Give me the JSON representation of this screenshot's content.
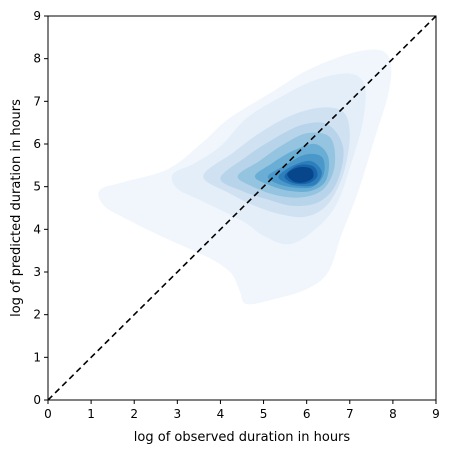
{
  "chart_data": {
    "type": "kde-contour",
    "xlabel": "log of observed duration in hours",
    "ylabel": "log of predicted duration in hours",
    "xlim": [
      0,
      9
    ],
    "ylim": [
      0,
      9
    ],
    "xticks": [
      "0",
      "1",
      "2",
      "3",
      "4",
      "5",
      "6",
      "7",
      "8",
      "9"
    ],
    "yticks": [
      "0",
      "1",
      "2",
      "3",
      "4",
      "5",
      "6",
      "7",
      "8",
      "9"
    ],
    "grid": false,
    "legend": "none",
    "reference_line": {
      "style": "dashed",
      "color": "#000000",
      "from": [
        0,
        0
      ],
      "to": [
        9,
        9
      ]
    },
    "density_peak": {
      "x": 5.85,
      "y": 5.3
    },
    "contour_levels": [
      {
        "level": 1,
        "color": "#f1f6fd",
        "points": [
          [
            1.2,
            4.92
          ],
          [
            1.8,
            5.12
          ],
          [
            2.8,
            5.42
          ],
          [
            3.6,
            6.05
          ],
          [
            4.2,
            6.6
          ],
          [
            5.2,
            7.22
          ],
          [
            6.0,
            7.72
          ],
          [
            7.0,
            8.12
          ],
          [
            7.7,
            8.2
          ],
          [
            7.95,
            7.9
          ],
          [
            7.9,
            7.2
          ],
          [
            7.6,
            6.2
          ],
          [
            7.2,
            4.9
          ],
          [
            6.8,
            3.85
          ],
          [
            6.5,
            3.0
          ],
          [
            6.0,
            2.6
          ],
          [
            5.2,
            2.35
          ],
          [
            4.6,
            2.25
          ],
          [
            4.45,
            2.55
          ],
          [
            4.3,
            2.9
          ],
          [
            4.1,
            3.1
          ],
          [
            3.7,
            3.35
          ],
          [
            2.6,
            3.85
          ],
          [
            1.8,
            4.25
          ],
          [
            1.3,
            4.55
          ]
        ]
      },
      {
        "level": 2,
        "color": "#e3eef9",
        "points": [
          [
            2.9,
            5.3
          ],
          [
            3.4,
            5.55
          ],
          [
            4.0,
            5.95
          ],
          [
            4.6,
            6.6
          ],
          [
            5.3,
            7.05
          ],
          [
            6.2,
            7.5
          ],
          [
            7.0,
            7.65
          ],
          [
            7.35,
            7.35
          ],
          [
            7.3,
            6.5
          ],
          [
            7.05,
            5.6
          ],
          [
            6.7,
            4.6
          ],
          [
            6.2,
            4.0
          ],
          [
            5.6,
            3.65
          ],
          [
            5.0,
            3.85
          ],
          [
            4.5,
            4.2
          ],
          [
            3.6,
            4.65
          ],
          [
            3.0,
            4.95
          ]
        ]
      },
      {
        "level": 3,
        "color": "#d0e1f2",
        "points": [
          [
            3.6,
            5.25
          ],
          [
            4.3,
            5.8
          ],
          [
            4.9,
            6.25
          ],
          [
            5.6,
            6.65
          ],
          [
            6.3,
            6.85
          ],
          [
            6.85,
            6.75
          ],
          [
            7.0,
            6.2
          ],
          [
            6.85,
            5.3
          ],
          [
            6.5,
            4.6
          ],
          [
            6.0,
            4.3
          ],
          [
            5.4,
            4.35
          ],
          [
            4.8,
            4.55
          ],
          [
            4.2,
            4.85
          ]
        ]
      },
      {
        "level": 4,
        "color": "#b7d4ea",
        "points": [
          [
            4.0,
            5.2
          ],
          [
            4.6,
            5.7
          ],
          [
            5.2,
            6.1
          ],
          [
            5.9,
            6.45
          ],
          [
            6.5,
            6.45
          ],
          [
            6.85,
            5.9
          ],
          [
            6.7,
            5.1
          ],
          [
            6.3,
            4.65
          ],
          [
            5.7,
            4.55
          ],
          [
            5.1,
            4.7
          ],
          [
            4.5,
            4.9
          ]
        ]
      },
      {
        "level": 5,
        "color": "#94c4df",
        "points": [
          [
            4.4,
            5.25
          ],
          [
            4.9,
            5.6
          ],
          [
            5.4,
            5.95
          ],
          [
            6.0,
            6.25
          ],
          [
            6.55,
            6.15
          ],
          [
            6.65,
            5.5
          ],
          [
            6.4,
            4.95
          ],
          [
            5.9,
            4.75
          ],
          [
            5.3,
            4.8
          ],
          [
            4.75,
            5.0
          ]
        ]
      },
      {
        "level": 6,
        "color": "#6aaed6",
        "points": [
          [
            4.8,
            5.25
          ],
          [
            5.2,
            5.55
          ],
          [
            5.7,
            5.85
          ],
          [
            6.2,
            6.0
          ],
          [
            6.5,
            5.7
          ],
          [
            6.45,
            5.15
          ],
          [
            6.1,
            4.9
          ],
          [
            5.6,
            4.9
          ],
          [
            5.1,
            5.05
          ]
        ]
      },
      {
        "level": 7,
        "color": "#4a98c9",
        "points": [
          [
            5.1,
            5.25
          ],
          [
            5.5,
            5.5
          ],
          [
            5.95,
            5.75
          ],
          [
            6.35,
            5.7
          ],
          [
            6.4,
            5.3
          ],
          [
            6.15,
            5.0
          ],
          [
            5.7,
            4.98
          ],
          [
            5.3,
            5.08
          ]
        ]
      },
      {
        "level": 8,
        "color": "#2e7ebc",
        "points": [
          [
            5.35,
            5.25
          ],
          [
            5.7,
            5.5
          ],
          [
            6.1,
            5.6
          ],
          [
            6.35,
            5.35
          ],
          [
            6.2,
            5.05
          ],
          [
            5.8,
            5.02
          ],
          [
            5.5,
            5.1
          ]
        ]
      },
      {
        "level": 9,
        "color": "#1764ab",
        "points": [
          [
            5.5,
            5.28
          ],
          [
            5.8,
            5.5
          ],
          [
            6.15,
            5.48
          ],
          [
            6.25,
            5.25
          ],
          [
            6.05,
            5.08
          ],
          [
            5.75,
            5.07
          ],
          [
            5.55,
            5.15
          ]
        ]
      },
      {
        "level": 10,
        "color": "#08468b",
        "points": [
          [
            5.55,
            5.3
          ],
          [
            5.8,
            5.45
          ],
          [
            6.1,
            5.42
          ],
          [
            6.15,
            5.22
          ],
          [
            5.95,
            5.1
          ],
          [
            5.7,
            5.12
          ]
        ]
      }
    ]
  }
}
